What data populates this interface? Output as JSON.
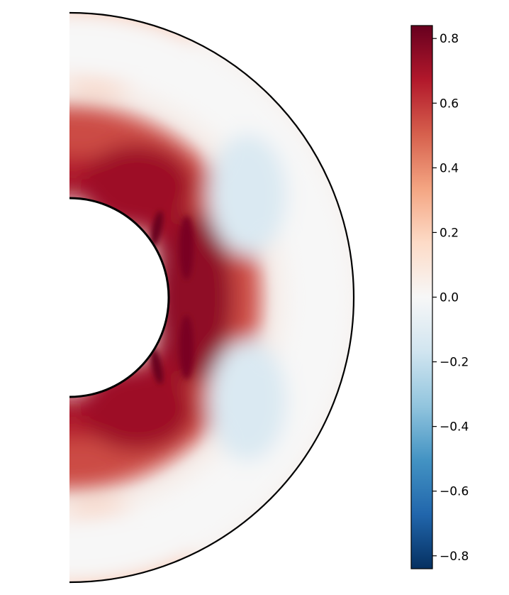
{
  "chart_data": {
    "type": "heatmap",
    "title": "",
    "xlabel": "",
    "ylabel": "",
    "geometry": "meridional half-annulus (spherical shell slice)",
    "colormap": "RdBu_r",
    "colormap_stops": [
      "#053061",
      "#2166ac",
      "#4393c3",
      "#92c5de",
      "#d1e5f0",
      "#f7f7f7",
      "#fddbc7",
      "#f4a582",
      "#d6604d",
      "#b2182b",
      "#67001f"
    ],
    "value_range": [
      -0.84,
      0.84
    ],
    "colorbar": {
      "ticks": [
        0.8,
        0.6,
        0.4,
        0.2,
        0.0,
        -0.2,
        -0.4,
        -0.6,
        -0.8
      ],
      "tick_labels": [
        "0.8",
        "0.6",
        "0.4",
        "0.2",
        "0.0",
        "−0.2",
        "−0.4",
        "−0.6",
        "−0.8"
      ]
    },
    "features": [
      {
        "region": "inner shell, near equator",
        "approx_value": 0.7
      },
      {
        "region": "inner shell, mid latitudes",
        "approx_value": 0.7
      },
      {
        "region": "dark streaks near colatitude 45 and 135 deg",
        "approx_value": 0.84
      },
      {
        "region": "outer shell",
        "approx_value": 0.0
      },
      {
        "region": "outer shell, mid latitudes",
        "approx_value": -0.12
      },
      {
        "region": "near poles",
        "approx_value": 0.15
      }
    ],
    "grid": false,
    "legend": "colorbar-right"
  }
}
